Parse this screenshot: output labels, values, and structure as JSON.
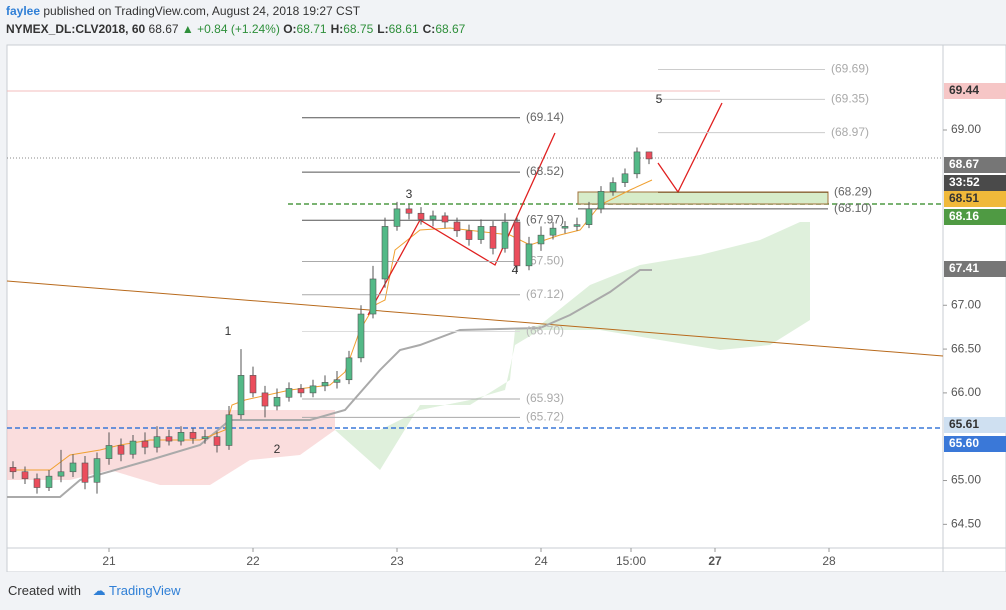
{
  "header": {
    "user": "faylee",
    "published": "published on TradingView.com, August 24, 2018 19:27 CST",
    "symbol": "NYMEX_DL:CLV2018, 60",
    "last": "68.67",
    "change": "+0.84 (+1.24%)",
    "ohlc": [
      [
        "O:",
        "68.71"
      ],
      [
        "H:",
        "68.75"
      ],
      [
        "L:",
        "68.61"
      ],
      [
        "C:",
        "68.67"
      ]
    ]
  },
  "footer": {
    "created": "Created with",
    "brand": "TradingView"
  },
  "chart_data": {
    "type": "candlestick",
    "x": [
      1,
      3,
      5,
      7,
      9,
      11,
      13,
      15,
      17,
      19,
      21,
      23,
      25,
      27,
      29,
      31,
      33,
      35,
      37,
      39,
      41,
      43,
      45,
      47,
      49,
      51,
      53,
      55,
      57,
      59,
      61,
      63,
      65,
      67,
      69,
      71,
      73,
      75,
      77,
      79,
      81,
      83,
      85,
      87,
      89,
      91,
      93,
      95,
      97,
      99,
      101,
      103,
      105,
      107
    ],
    "open": [
      65.15,
      65.1,
      65.02,
      64.92,
      65.05,
      65.1,
      65.2,
      64.98,
      65.25,
      65.4,
      65.3,
      65.45,
      65.38,
      65.5,
      65.45,
      65.55,
      65.48,
      65.5,
      65.4,
      65.75,
      66.2,
      66.0,
      65.85,
      65.95,
      66.05,
      66.0,
      66.08,
      66.12,
      66.15,
      66.4,
      66.9,
      67.3,
      67.9,
      68.1,
      68.05,
      67.98,
      68.02,
      67.95,
      67.85,
      67.75,
      67.9,
      67.65,
      67.95,
      67.45,
      67.7,
      67.8,
      67.88,
      67.9,
      67.92,
      68.1,
      68.3,
      68.4,
      68.5,
      68.75
    ],
    "high": [
      65.22,
      65.16,
      65.08,
      65.12,
      65.35,
      65.3,
      65.28,
      65.32,
      65.55,
      65.48,
      65.52,
      65.55,
      65.62,
      65.58,
      65.62,
      65.6,
      65.58,
      65.56,
      65.85,
      66.5,
      66.3,
      66.08,
      66.05,
      66.12,
      66.1,
      66.15,
      66.2,
      66.25,
      66.48,
      67.0,
      67.45,
      68.0,
      68.18,
      68.15,
      68.12,
      68.08,
      68.06,
      68.0,
      67.92,
      67.98,
      67.96,
      68.05,
      68.0,
      67.78,
      67.9,
      67.95,
      67.96,
      68.0,
      68.18,
      68.36,
      68.46,
      68.56,
      68.8,
      68.75
    ],
    "low": [
      65.02,
      64.96,
      64.85,
      64.88,
      64.98,
      65.04,
      64.9,
      64.85,
      65.18,
      65.22,
      65.25,
      65.3,
      65.32,
      65.4,
      65.4,
      65.42,
      65.42,
      65.32,
      65.35,
      65.7,
      65.95,
      65.72,
      65.8,
      65.9,
      65.95,
      65.95,
      66.02,
      66.05,
      66.1,
      66.35,
      66.85,
      67.2,
      67.85,
      67.98,
      67.92,
      67.9,
      67.88,
      67.78,
      67.68,
      67.7,
      67.58,
      67.6,
      67.38,
      67.4,
      67.62,
      67.75,
      67.82,
      67.85,
      67.88,
      68.05,
      68.25,
      68.35,
      68.45,
      68.61
    ],
    "close": [
      65.1,
      65.02,
      64.92,
      65.05,
      65.1,
      65.2,
      64.98,
      65.25,
      65.4,
      65.3,
      65.45,
      65.38,
      65.5,
      65.45,
      65.55,
      65.48,
      65.5,
      65.4,
      65.75,
      66.2,
      66.0,
      65.85,
      65.95,
      66.05,
      66.0,
      66.08,
      66.12,
      66.15,
      66.4,
      66.9,
      67.3,
      67.9,
      68.1,
      68.05,
      67.98,
      68.02,
      67.95,
      67.85,
      67.75,
      67.9,
      67.65,
      67.95,
      67.45,
      67.7,
      67.8,
      67.88,
      67.9,
      67.92,
      68.1,
      68.3,
      68.4,
      68.5,
      68.75,
      68.67
    ],
    "up_color": "#53b987",
    "down_color": "#eb4d5c",
    "xlim": [
      0,
      156
    ],
    "ylim": [
      64.23,
      69.97
    ],
    "xticks": [
      {
        "value": 17,
        "label": "21"
      },
      {
        "value": 41,
        "label": "22"
      },
      {
        "value": 65,
        "label": "23"
      },
      {
        "value": 89,
        "label": "24"
      },
      {
        "value": 104,
        "label": "15:00"
      },
      {
        "value": 118,
        "label": "27"
      },
      {
        "value": 137,
        "label": "28"
      }
    ],
    "yticks": [
      {
        "value": 64.5,
        "label": "64.50"
      },
      {
        "value": 65,
        "label": "65.00"
      },
      {
        "value": 66,
        "label": "66.00"
      },
      {
        "value": 66.5,
        "label": "66.50"
      },
      {
        "value": 67,
        "label": "67.00"
      },
      {
        "value": 69,
        "label": "69.00"
      }
    ],
    "fib_levels": {
      "values": [
        69.69,
        69.35,
        68.97,
        68.29,
        68.1,
        69.14,
        68.52,
        67.97,
        67.5,
        67.12,
        66.7,
        65.93,
        65.72
      ],
      "value_labels": [
        "(69.69)",
        "(69.35)",
        "(68.97)",
        "(68.29)",
        "(68.10)",
        "(69.14)",
        "(68.52)",
        "(67.97)",
        "(67.50)",
        "(67.12)",
        "(66.70)",
        "(65.93)",
        "(65.72)"
      ]
    },
    "price_tags": [
      {
        "value": 69.44,
        "label": "69.44",
        "color": "#f6c6c6"
      },
      {
        "value": 68.67,
        "label": "68.67",
        "color": "#767676"
      },
      {
        "label": "33:52",
        "color": "#4a4a4a"
      },
      {
        "value": 68.51,
        "label": "68.51",
        "color": "#f0b93a"
      },
      {
        "value": 68.16,
        "label": "68.16",
        "color": "#4f9a43"
      },
      {
        "value": 67.41,
        "label": "67.41",
        "color": "#767676"
      },
      {
        "value": 65.61,
        "label": "65.61",
        "color": "#cfe0f1"
      },
      {
        "value": 65.6,
        "label": "65.60",
        "color": "#3a78d8"
      }
    ],
    "annotations": [
      "1",
      "2",
      "3",
      "4",
      "5"
    ]
  }
}
